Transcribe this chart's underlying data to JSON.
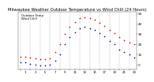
{
  "title": "Milwaukee Weather Outdoor Temperature vs Wind Chill (24 Hours)",
  "title_fontsize": 3.8,
  "background_color": "#ffffff",
  "temp_color": "#dd0000",
  "windchill_color": "#0000cc",
  "hours": [
    0,
    1,
    2,
    3,
    4,
    5,
    6,
    7,
    8,
    9,
    10,
    11,
    12,
    13,
    14,
    15,
    16,
    17,
    18,
    19,
    20,
    21,
    22,
    23
  ],
  "temp": [
    8,
    8,
    7,
    6,
    5,
    5,
    6,
    12,
    20,
    30,
    37,
    42,
    46,
    47,
    46,
    44,
    41,
    38,
    34,
    31,
    27,
    24,
    22,
    20
  ],
  "windchill": [
    2,
    2,
    1,
    0,
    -1,
    -1,
    0,
    4,
    10,
    20,
    27,
    32,
    36,
    37,
    36,
    34,
    31,
    28,
    23,
    20,
    15,
    12,
    10,
    7
  ],
  "ylim": [
    -5,
    52
  ],
  "yticks": [
    0,
    10,
    20,
    30,
    40,
    50
  ],
  "ytick_labels": [
    "0",
    "10",
    "20",
    "30",
    "40",
    "50"
  ],
  "ytick_fontsize": 3.0,
  "xtick_fontsize": 2.8,
  "grid_color": "#999999",
  "marker_size": 1.5,
  "legend_label_temp": "Outdoor Temp",
  "legend_label_wc": "Wind Chill",
  "legend_fontsize": 2.8
}
